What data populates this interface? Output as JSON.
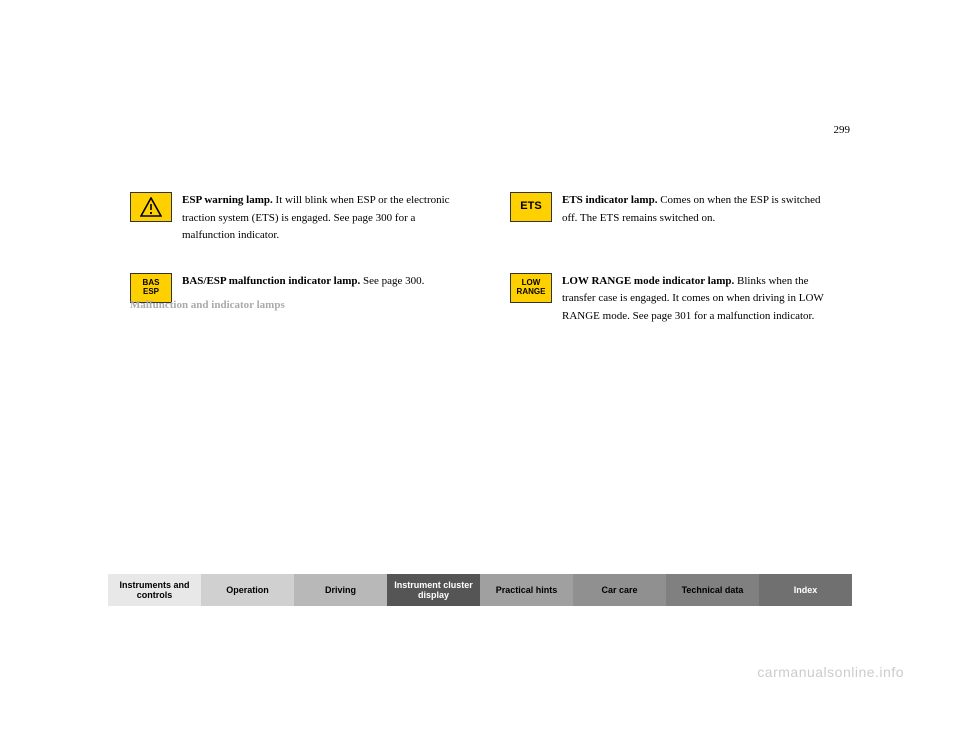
{
  "page_number": "299",
  "lamps": [
    {
      "id": "triangle",
      "label": "",
      "desc_prefix": "ESP warning lamp.",
      "desc_body": " It will blink when ESP or the electronic traction system (ETS) is engaged. See page 300 for a malfunction indicator.",
      "indicator_color": "#ffd000"
    },
    {
      "id": "basesp",
      "label": "BAS\nESP",
      "desc_prefix": "BAS/ESP malfunction indicator lamp.",
      "desc_body": " See page 300.",
      "indicator_color": "#ffd000"
    },
    {
      "id": "ets",
      "label": "ETS",
      "desc_prefix": "ETS indicator lamp.",
      "desc_body": " Comes on when the ESP is switched off. The ETS remains switched on.",
      "indicator_color": "#ffd000"
    },
    {
      "id": "lowrange",
      "label": "LOW\nRANGE",
      "desc_prefix": "LOW RANGE mode indicator lamp.",
      "desc_body": " Blinks when the transfer case is engaged. It comes on when driving in LOW RANGE mode. See page 301 for a malfunction indicator.",
      "indicator_color": "#ffd000"
    }
  ],
  "section_title": "Malfunction and indicator lamps",
  "nav": [
    "Instruments and controls",
    "Operation",
    "Driving",
    "Instrument cluster display",
    "Practical hints",
    "Car care",
    "Technical data",
    "Index"
  ],
  "watermark": "carmanualsonline.info"
}
